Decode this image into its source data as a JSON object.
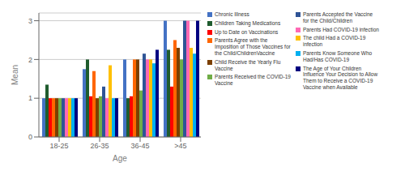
{
  "chart_data": {
    "type": "bar",
    "categories": [
      "18-25",
      "26-35",
      "36-45",
      ">45"
    ],
    "series": [
      {
        "name": "Chronic Illness",
        "color": "#4472C4",
        "values": [
          1.0,
          1.75,
          2.0,
          3.0
        ]
      },
      {
        "name": "Children Taking Medications",
        "color": "#1F5C2E",
        "values": [
          1.35,
          2.0,
          1.0,
          2.25
        ]
      },
      {
        "name": "Up to Date on Vaccinations",
        "color": "#FF0000",
        "values": [
          1.0,
          1.05,
          1.05,
          1.3
        ]
      },
      {
        "name": "Parents Agree with the\nImposition of Those Vaccines for\nthe Child/ChildrenVaccine",
        "color": "#FF6600",
        "values": [
          1.0,
          1.7,
          2.0,
          2.5
        ]
      },
      {
        "name": "Child Receive the Yearly Flu\nVaccine",
        "color": "#7B3F00",
        "values": [
          1.0,
          1.0,
          2.0,
          2.3
        ]
      },
      {
        "name": "Parents Received the COVID-19\nVaccine",
        "color": "#70AD47",
        "values": [
          1.0,
          1.05,
          1.2,
          2.0
        ]
      },
      {
        "name": "Parents Accepted the Vaccine\nfor the Child/Children",
        "color": "#2F5496",
        "values": [
          1.0,
          1.3,
          2.15,
          3.0
        ]
      },
      {
        "name": "Parents Had COVID-19 infection",
        "color": "#FF69B4",
        "values": [
          1.0,
          1.0,
          2.0,
          3.0
        ]
      },
      {
        "name": "The child Had a COVID-19\ninfection",
        "color": "#FFC000",
        "values": [
          1.0,
          1.85,
          2.0,
          2.3
        ]
      },
      {
        "name": "Parents Know Someone Who\nHad/Has COVID-19",
        "color": "#00B0F0",
        "values": [
          1.0,
          1.0,
          1.9,
          2.15
        ]
      },
      {
        "name": "The Age of Your Children\nInfluence Your Decision to Allow\nThem to Receive a COVID-19\nVaccine when Available",
        "color": "#000080",
        "values": [
          1.0,
          1.0,
          2.25,
          3.0
        ]
      }
    ],
    "xlabel": "Age",
    "ylabel": "Mean",
    "ylim": [
      0,
      3.2
    ],
    "yticks": [
      0,
      1,
      2,
      3
    ],
    "grid": true,
    "legend": "right"
  }
}
